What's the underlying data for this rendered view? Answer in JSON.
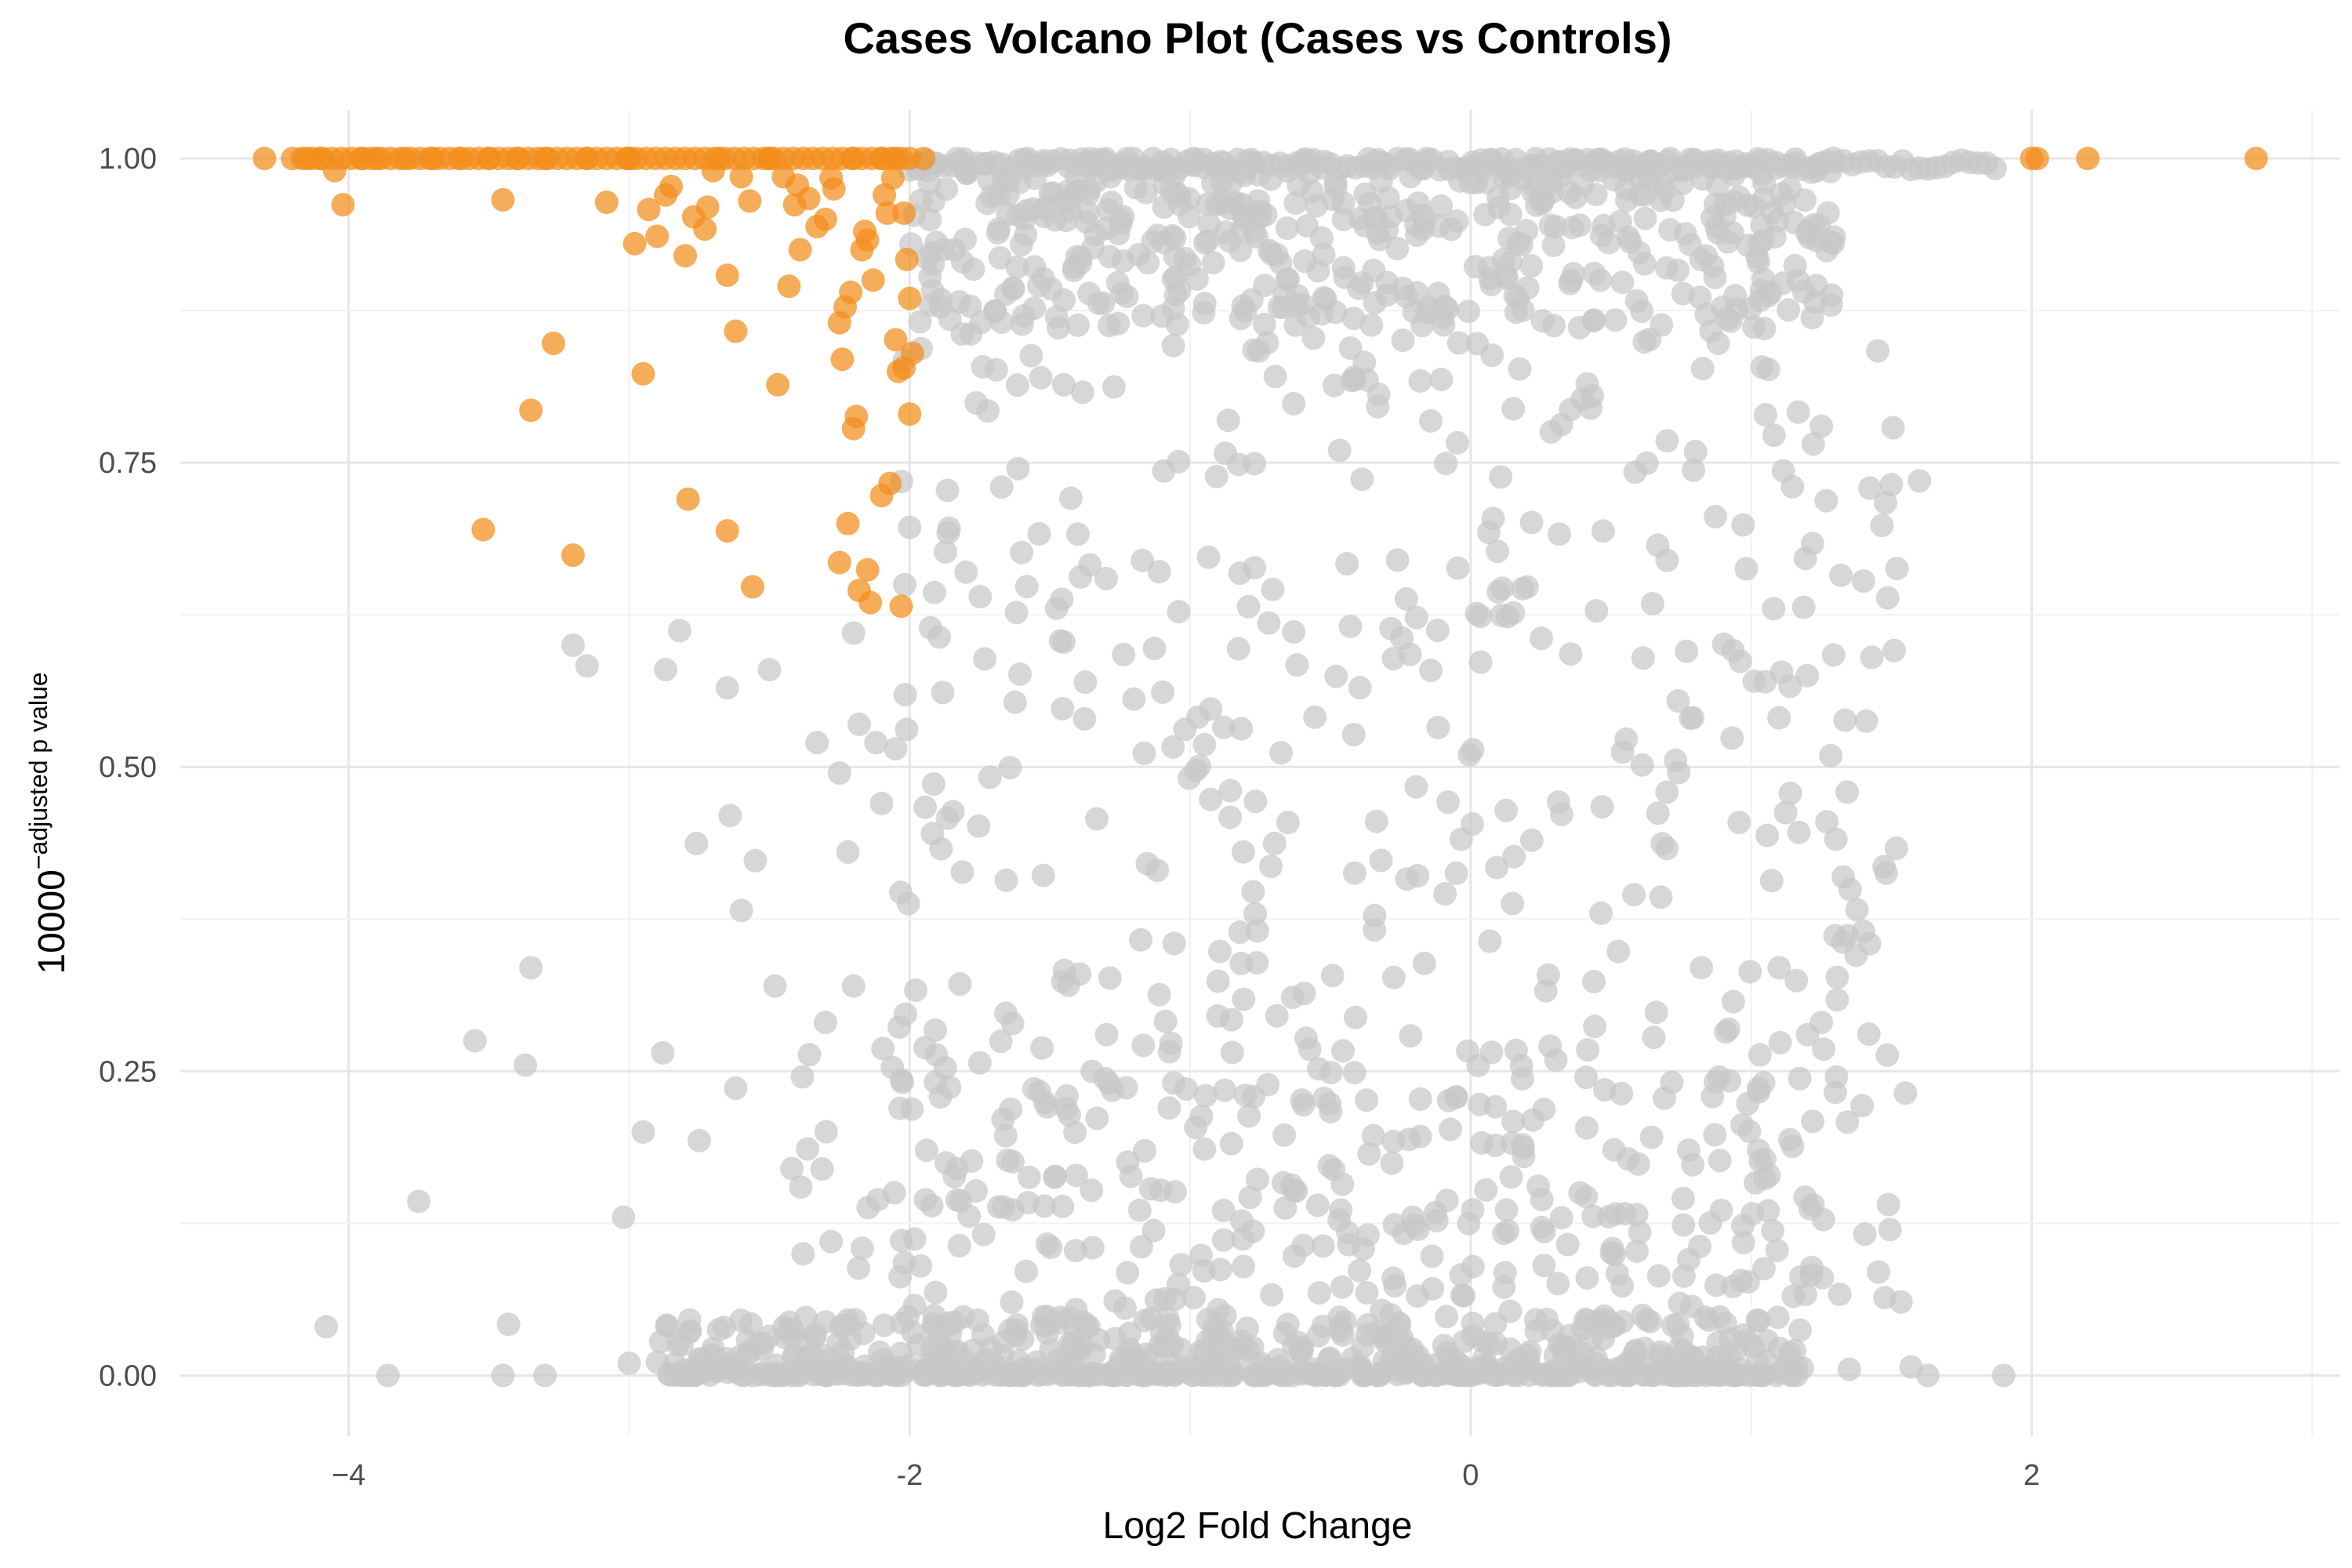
{
  "colors": {
    "significant": "#F28E1B",
    "not_significant": "#C8C8C8",
    "background": "#FFFFFF"
  },
  "chart_data": {
    "type": "scatter",
    "title": "Cases Volcano Plot (Cases vs Controls)",
    "xlabel": "Log2 Fold Change",
    "ylabel_base": "10000",
    "ylabel_exponent": "−adjusted p value",
    "xlim": [
      -4.6,
      3.1
    ],
    "ylim": [
      -0.05,
      1.04
    ],
    "x_ticks": [
      -4,
      -2,
      0,
      2
    ],
    "x_tick_labels": [
      "−4",
      "-2",
      "0",
      "2"
    ],
    "y_ticks": [
      0,
      0.25,
      0.5,
      0.75,
      1
    ],
    "y_tick_labels": [
      "0.00",
      "0.25",
      "0.50",
      "0.75",
      "1.00"
    ],
    "grid": true,
    "legend": "none",
    "series": [
      {
        "group": "significant",
        "points": [
          [
            -4.3,
            1.0
          ],
          [
            -4.15,
            1.0
          ],
          [
            -4.1,
            1.0
          ],
          [
            -4.05,
            0.99
          ],
          [
            -4.02,
            0.962
          ],
          [
            -3.95,
            1.0
          ],
          [
            -3.9,
            1.0
          ],
          [
            -3.8,
            1.0
          ],
          [
            -3.7,
            1.0
          ],
          [
            -3.6,
            1.0
          ],
          [
            -3.52,
            0.695
          ],
          [
            -3.45,
            0.966
          ],
          [
            -3.4,
            1.0
          ],
          [
            -3.35,
            0.793
          ],
          [
            -3.3,
            1.0
          ],
          [
            -3.27,
            0.848
          ],
          [
            -3.2,
            0.674
          ],
          [
            -3.15,
            1.0
          ],
          [
            -3.08,
            0.964
          ],
          [
            -3.0,
            1.0
          ],
          [
            -2.98,
            0.93
          ],
          [
            -2.95,
            0.823
          ],
          [
            -2.93,
            0.958
          ],
          [
            -2.9,
            0.936
          ],
          [
            -2.87,
            0.97
          ],
          [
            -2.85,
            0.977
          ],
          [
            -2.8,
            0.92
          ],
          [
            -2.79,
            0.72
          ],
          [
            -2.77,
            0.952
          ],
          [
            -2.73,
            0.942
          ],
          [
            -2.72,
            0.96
          ],
          [
            -2.7,
            0.99
          ],
          [
            -2.68,
            1.0
          ],
          [
            -2.65,
            0.904
          ],
          [
            -2.65,
            0.694
          ],
          [
            -2.62,
            0.858
          ],
          [
            -2.6,
            0.985
          ],
          [
            -2.57,
            0.965
          ],
          [
            -2.56,
            0.648
          ],
          [
            -2.5,
            1.0
          ],
          [
            -2.47,
            0.814
          ],
          [
            -2.45,
            0.985
          ],
          [
            -2.43,
            0.895
          ],
          [
            -2.41,
            0.962
          ],
          [
            -2.4,
            0.978
          ],
          [
            -2.39,
            0.925
          ],
          [
            -2.36,
            0.967
          ],
          [
            -2.33,
            0.944
          ],
          [
            -2.3,
            0.95
          ],
          [
            -2.28,
            0.984
          ],
          [
            -2.27,
            0.975
          ],
          [
            -2.25,
            0.865
          ],
          [
            -2.24,
            0.835
          ],
          [
            -2.23,
            0.878
          ],
          [
            -2.25,
            0.668
          ],
          [
            -2.22,
            0.7
          ],
          [
            -2.21,
            0.89
          ],
          [
            -2.2,
            0.778
          ],
          [
            -2.19,
            0.788
          ],
          [
            -2.18,
            0.645
          ],
          [
            -2.17,
            0.925
          ],
          [
            -2.16,
            0.94
          ],
          [
            -2.15,
            0.933
          ],
          [
            -2.15,
            0.662
          ],
          [
            -2.14,
            0.635
          ],
          [
            -2.13,
            0.9
          ],
          [
            -2.1,
            0.723
          ],
          [
            -2.09,
            0.97
          ],
          [
            -2.08,
            0.955
          ],
          [
            -2.07,
            0.733
          ],
          [
            -2.06,
            0.984
          ],
          [
            -2.05,
            0.851
          ],
          [
            -2.04,
            0.825
          ],
          [
            -2.03,
            0.632
          ],
          [
            -2.02,
            0.828
          ],
          [
            -2.02,
            0.955
          ],
          [
            -2.01,
            0.917
          ],
          [
            -2.0,
            0.885
          ],
          [
            -2.0,
            0.79
          ],
          [
            -1.99,
            0.84
          ],
          [
            -1.95,
            1.0
          ],
          [
            -3.5,
            1.0
          ],
          [
            -3.0,
            1.0
          ],
          [
            -2.5,
            1.0
          ],
          [
            -2.2,
            1.0
          ],
          [
            -2.1,
            1.0
          ],
          [
            -2.05,
            1.0
          ],
          [
            -2.0,
            1.0
          ],
          [
            2.0,
            1.0
          ],
          [
            2.02,
            1.0
          ],
          [
            2.2,
            1.0
          ],
          [
            2.8,
            1.0
          ]
        ]
      }
    ]
  }
}
